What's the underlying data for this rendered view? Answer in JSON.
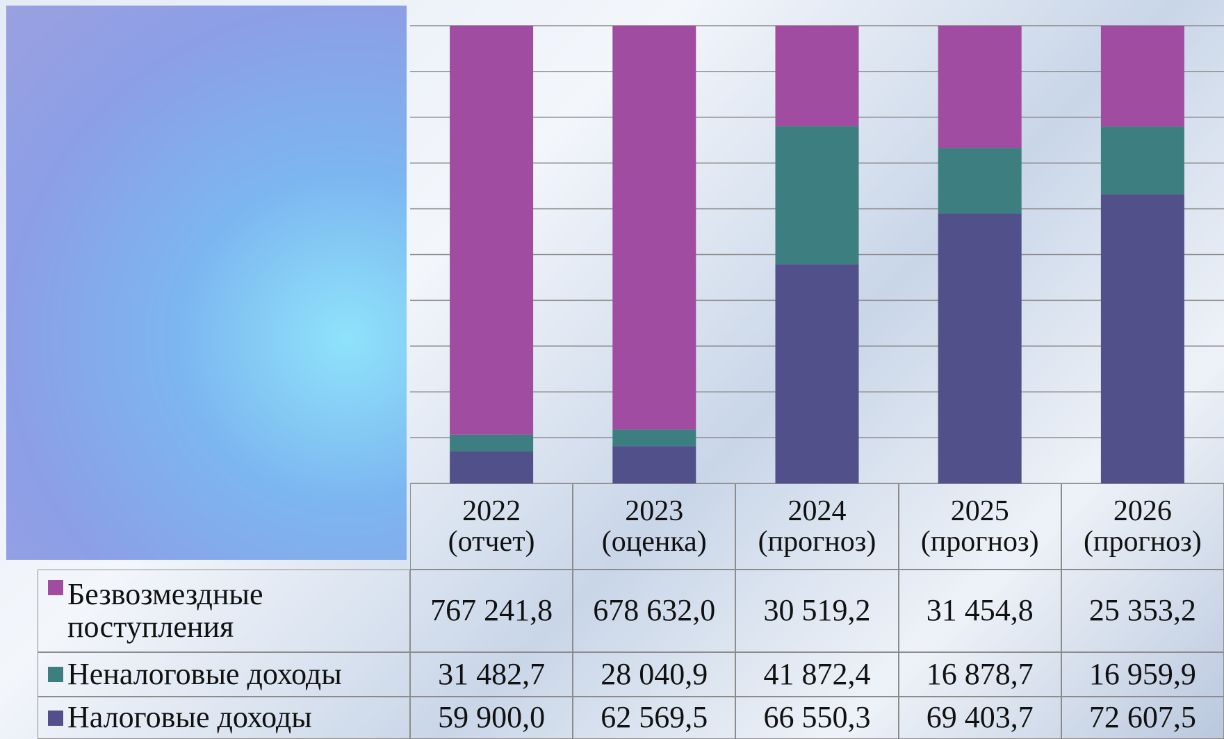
{
  "chart_data": {
    "type": "bar",
    "stacking": "percent",
    "categories": [
      "2022\n(отчет)",
      "2023\n(оценка)",
      "2024\n(прогноз)",
      "2025\n(прогноз)",
      "2026\n(прогноз)"
    ],
    "series": [
      {
        "name": "Безвозмездные поступления",
        "color": "#a04ca0",
        "values": [
          767241.8,
          678632.0,
          30519.2,
          31454.8,
          25353.2
        ],
        "value_labels": [
          "767 241,8",
          "678 632,0",
          "30 519,2",
          "31 454,8",
          "25 353,2"
        ]
      },
      {
        "name": "Неналоговые доходы",
        "color": "#3d7f80",
        "values": [
          31482.7,
          28040.9,
          41872.4,
          16878.7,
          16959.9
        ],
        "value_labels": [
          "31 482,7",
          "28 040,9",
          "41 872,4",
          "16 878,7",
          "16 959,9"
        ]
      },
      {
        "name": "Налоговые доходы",
        "color": "#51508a",
        "values": [
          59900.0,
          62569.5,
          66550.3,
          69403.7,
          72607.5
        ],
        "value_labels": [
          "59 900,0",
          "62 569,5",
          "66 550,3",
          "69 403,7",
          "72 607,5"
        ]
      }
    ],
    "ylim": [
      0,
      100
    ],
    "yticks": [
      0,
      10,
      20,
      30,
      40,
      50,
      60,
      70,
      80,
      90,
      100
    ],
    "grid": true
  }
}
